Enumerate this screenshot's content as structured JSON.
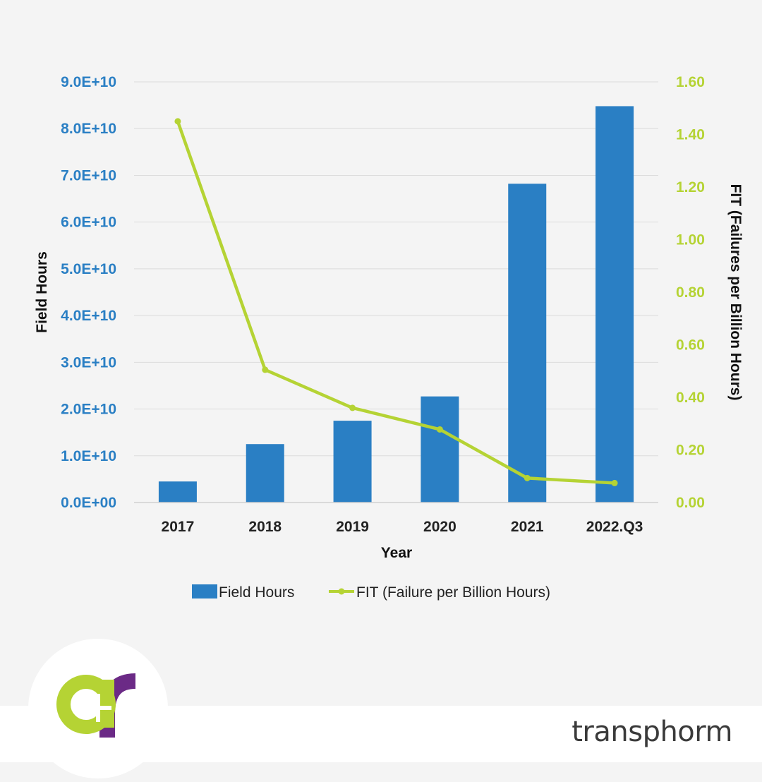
{
  "chart_data": {
    "type": "bar+line",
    "categories": [
      "2017",
      "2018",
      "2019",
      "2020",
      "2021",
      "2022.Q3"
    ],
    "series": [
      {
        "name": "Field Hours",
        "type": "bar",
        "axis": "left",
        "color": "#2a7fc4",
        "values": [
          4500000000.0,
          12500000000.0,
          17500000000.0,
          22700000000.0,
          68200000000.0,
          84800000000.0
        ]
      },
      {
        "name": "FIT (Failure per Billion Hours)",
        "type": "line",
        "axis": "right",
        "color": "#b5d334",
        "values": [
          1.45,
          0.505,
          0.36,
          0.278,
          0.093,
          0.074
        ]
      }
    ],
    "xlabel": "Year",
    "ylabel_left": "Field Hours",
    "ylabel_right": "FIT (Failures per Billion Hours)",
    "ylim_left": [
      0,
      90000000000.0
    ],
    "ylim_right": [
      0,
      1.6
    ],
    "yticks_left": [
      "0.0E+00",
      "1.0E+10",
      "2.0E+10",
      "3.0E+10",
      "4.0E+10",
      "5.0E+10",
      "6.0E+10",
      "7.0E+10",
      "8.0E+10",
      "9.0E+10"
    ],
    "yticks_right": [
      "0.00",
      "0.20",
      "0.40",
      "0.60",
      "0.80",
      "1.00",
      "1.20",
      "1.40",
      "1.60"
    ],
    "grid": true,
    "legend_position": "bottom"
  },
  "brand": {
    "name": "transphorm",
    "logo_colors": {
      "lime": "#b5d334",
      "purple": "#6b2a86"
    }
  },
  "colors": {
    "background": "#f4f4f4",
    "footer": "#ffffff"
  }
}
